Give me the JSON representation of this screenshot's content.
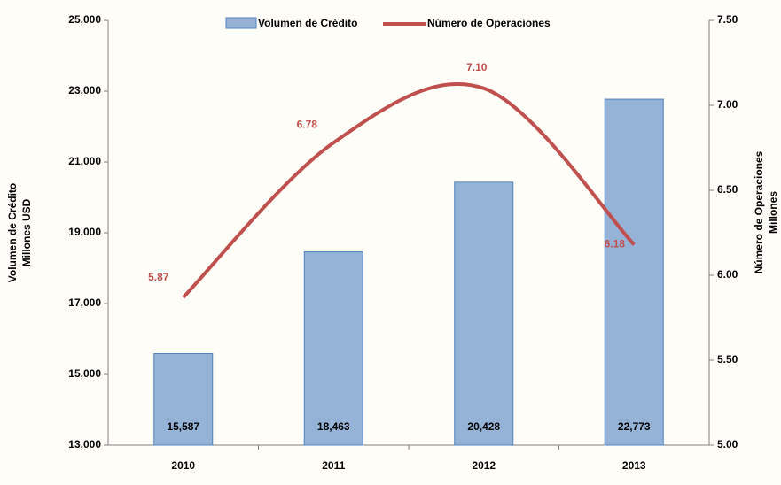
{
  "chart_data": {
    "type": "bar-line",
    "categories": [
      "2010",
      "2011",
      "2012",
      "2013"
    ],
    "series": [
      {
        "name": "Volumen de Crédito",
        "type": "bar",
        "color": "#95b3d7",
        "values": [
          15587,
          18463,
          20428,
          22773
        ],
        "value_labels": [
          "15,587",
          "18,463",
          "20,428",
          "22,773"
        ]
      },
      {
        "name": "Número de Operaciones",
        "type": "line",
        "axis": "y2",
        "color": "#c0504d",
        "values": [
          5.87,
          6.78,
          7.1,
          6.18
        ],
        "value_labels": [
          "5.87",
          "6.78",
          "7.10",
          "6.18"
        ]
      }
    ],
    "ylabel": [
      "Volumen de Crédito",
      "Millones USD"
    ],
    "y2label": [
      "Número de Operaciones",
      "Millones"
    ],
    "ylim": [
      13000,
      25000
    ],
    "yticks": [
      {
        "value": 13000,
        "label": "13,000"
      },
      {
        "value": 15000,
        "label": "15,000"
      },
      {
        "value": 17000,
        "label": "17,000"
      },
      {
        "value": 19000,
        "label": "19,000"
      },
      {
        "value": 21000,
        "label": "21,000"
      },
      {
        "value": 23000,
        "label": "23,000"
      },
      {
        "value": 25000,
        "label": "25,000"
      }
    ],
    "y2lim": [
      5,
      7.5
    ],
    "y2ticks": [
      {
        "value": 5,
        "label": "5.00"
      },
      {
        "value": 5.5,
        "label": "5.50"
      },
      {
        "value": 6,
        "label": "6.00"
      },
      {
        "value": 6.5,
        "label": "6.50"
      },
      {
        "value": 7,
        "label": "7.00"
      },
      {
        "value": 7.5,
        "label": "7.50"
      }
    ],
    "legend": "top"
  }
}
